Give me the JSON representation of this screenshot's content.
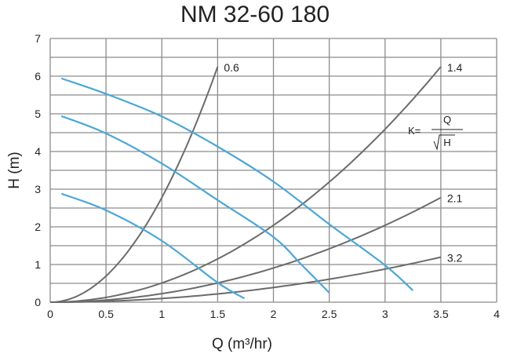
{
  "chart_data": {
    "type": "line",
    "title": "NM 32-60 180",
    "xlabel": "Q (m³/hr)",
    "ylabel": "H (m)",
    "xlim": [
      0,
      4
    ],
    "ylim": [
      0,
      7
    ],
    "x_ticks": [
      "0",
      "0.5",
      "1",
      "1.5",
      "2",
      "2.5",
      "3",
      "3.5",
      "4"
    ],
    "y_ticks": [
      "0",
      "1",
      "2",
      "3",
      "4",
      "5",
      "6",
      "7"
    ],
    "grid": true,
    "annotation": {
      "lhs": "K=",
      "numerator": "Q",
      "denominator": "H"
    },
    "pump_curves": [
      {
        "x": [
          0.1,
          0.5,
          1,
          1.5,
          2,
          2.5,
          3,
          3.25
        ],
        "y": [
          5.94,
          5.53,
          4.93,
          4.13,
          3.2,
          2.07,
          0.98,
          0.31
        ]
      },
      {
        "x": [
          0.1,
          0.5,
          1,
          1.5,
          2,
          2.25,
          2.5
        ],
        "y": [
          4.94,
          4.48,
          3.68,
          2.71,
          1.73,
          1.0,
          0.25
        ]
      },
      {
        "x": [
          0.1,
          0.5,
          1,
          1.5,
          1.74
        ],
        "y": [
          2.88,
          2.44,
          1.63,
          0.52,
          0.1
        ]
      }
    ],
    "system_curves": [
      {
        "label": "0.6",
        "K": 0.6,
        "q_max": 1.5
      },
      {
        "label": "1.4",
        "K": 1.4,
        "q_max": 3.5
      },
      {
        "label": "2.1",
        "K": 2.1,
        "q_max": 3.5
      },
      {
        "label": "3.2",
        "K": 3.2,
        "q_max": 3.5
      }
    ],
    "colors": {
      "pump": "#4aa8d8",
      "system": "#6b6b6b",
      "grid": "#8c8c8c"
    }
  }
}
